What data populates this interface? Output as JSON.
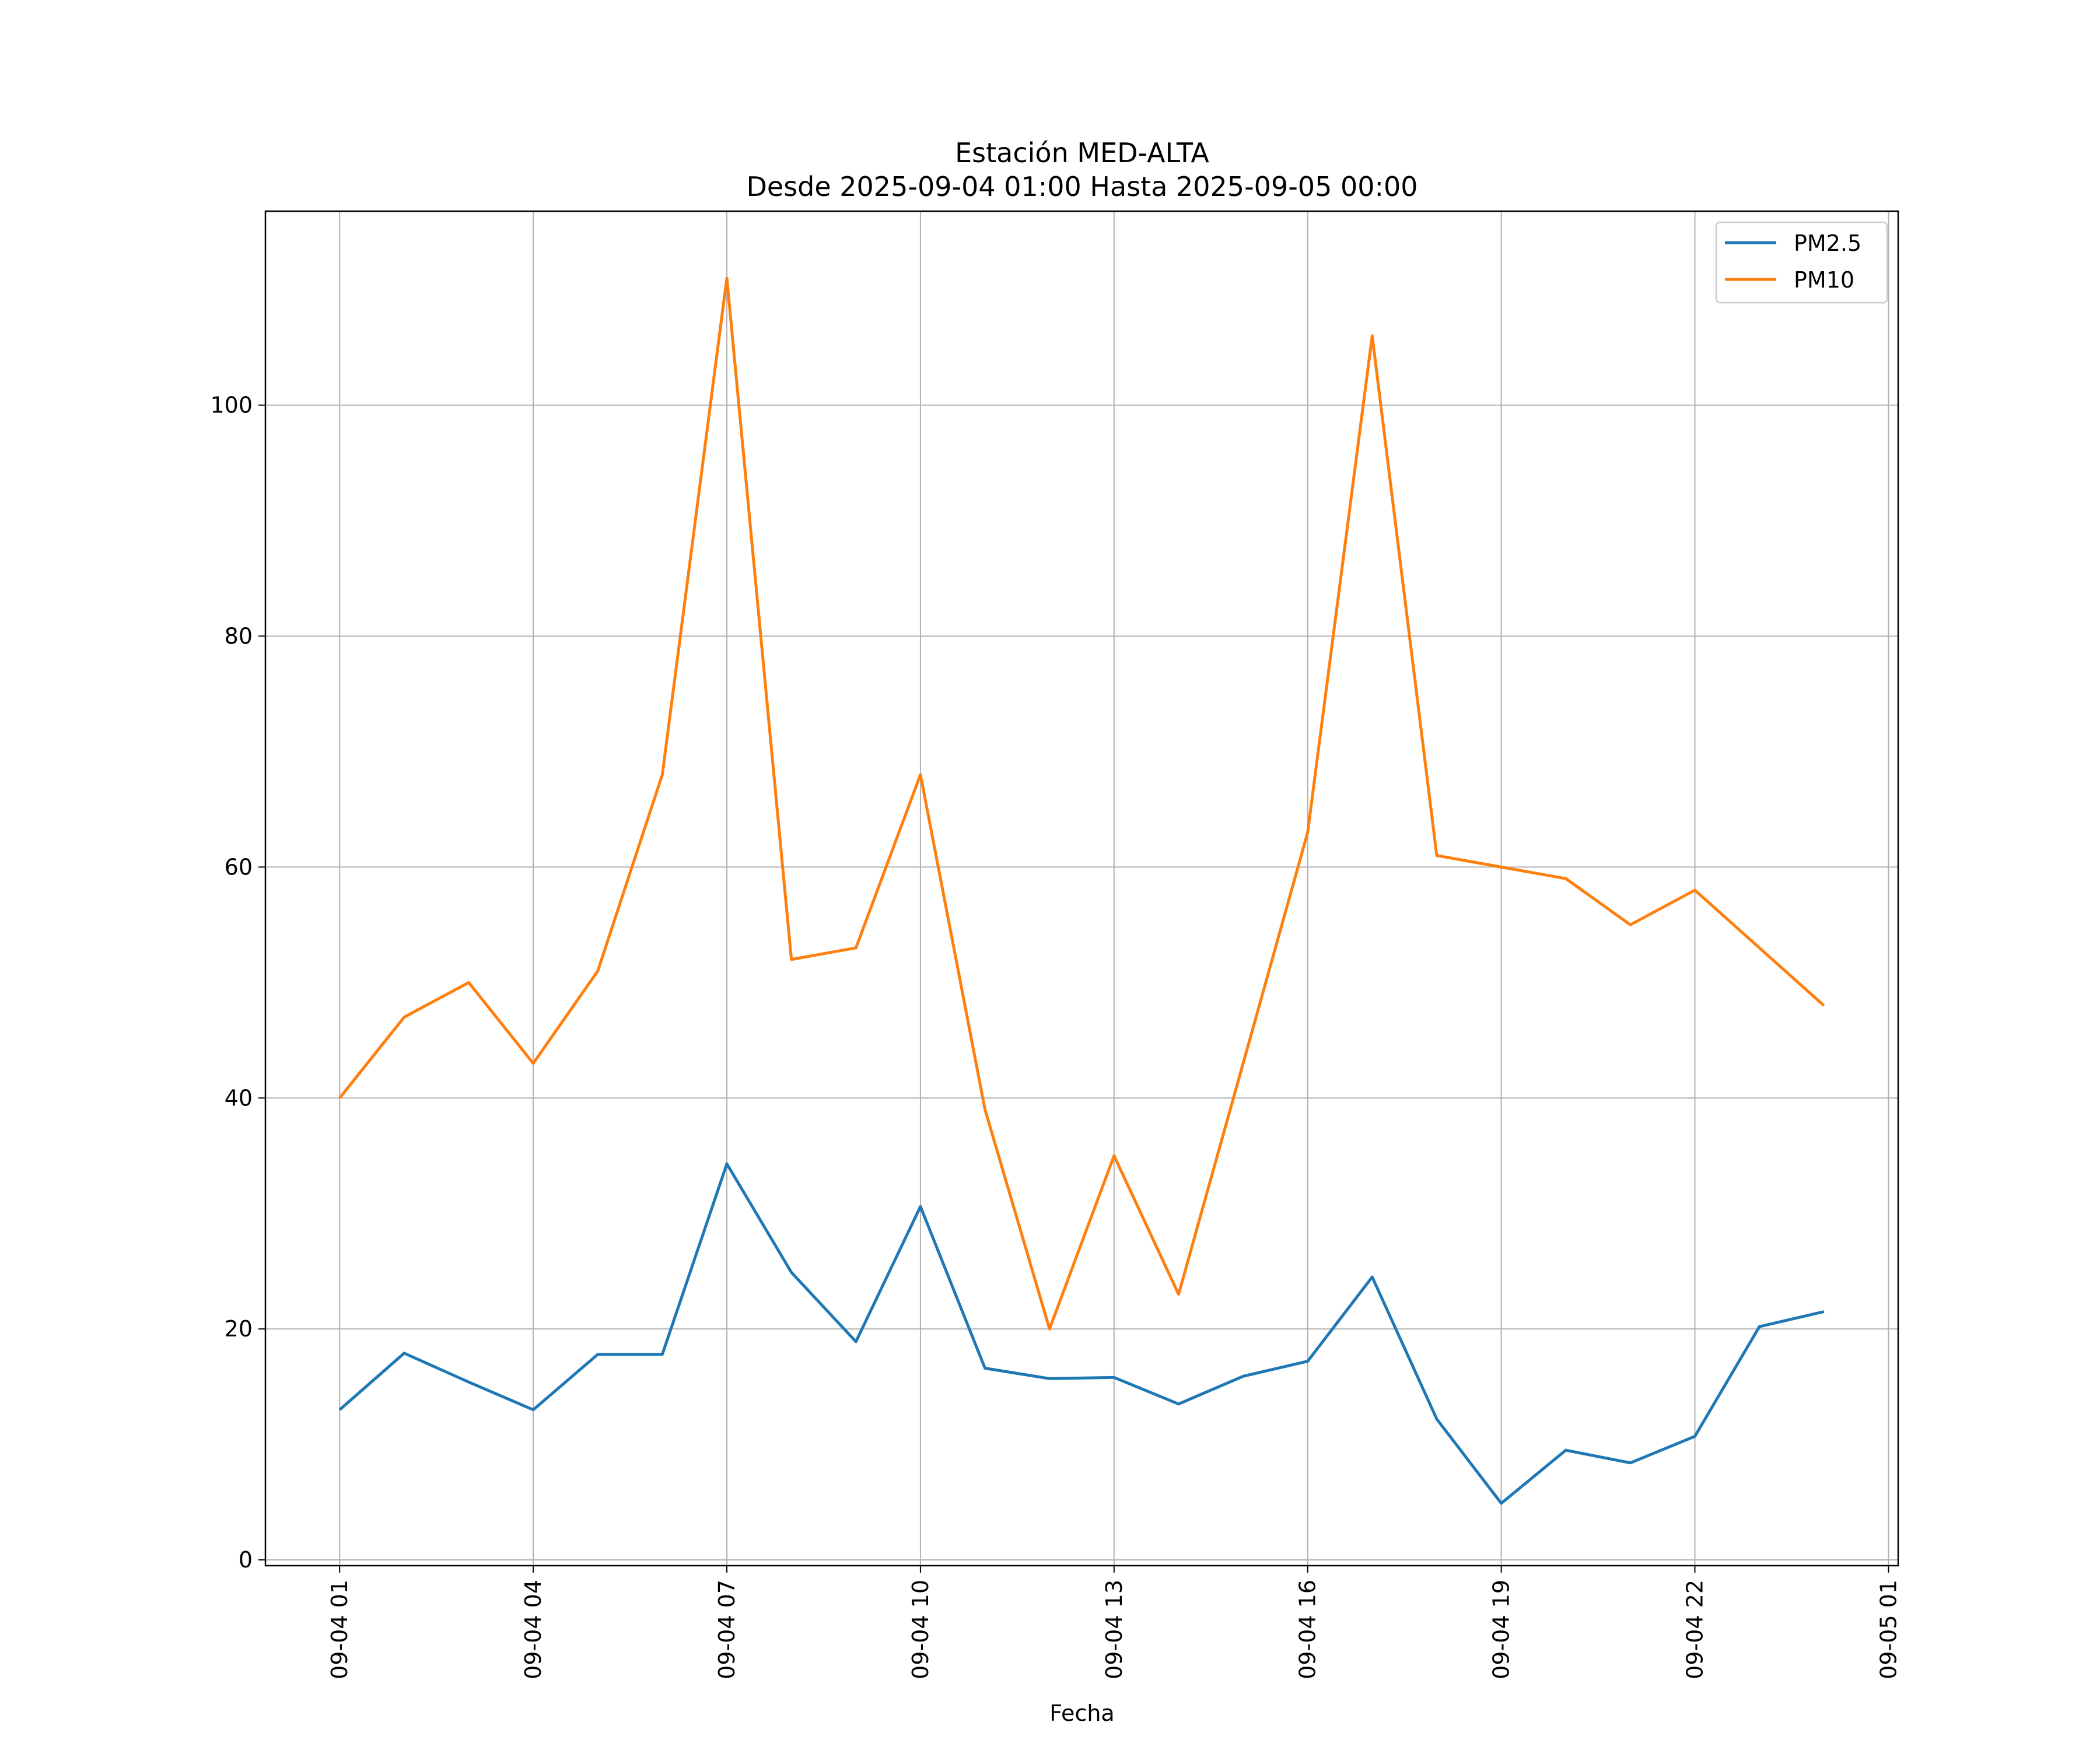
{
  "chart_data": {
    "type": "line",
    "title": "Estación MED-ALTA",
    "subtitle": "Desde 2025-09-04 01:00 Hasta 2025-09-05 00:00",
    "xlabel": "Fecha",
    "ylabel": "",
    "x": [
      "09-04 01",
      "09-04 02",
      "09-04 03",
      "09-04 04",
      "09-04 05",
      "09-04 06",
      "09-04 07",
      "09-04 08",
      "09-04 09",
      "09-04 10",
      "09-04 11",
      "09-04 12",
      "09-04 13",
      "09-04 14",
      "09-04 15",
      "09-04 16",
      "09-04 17",
      "09-04 18",
      "09-04 19",
      "09-04 20",
      "09-04 21",
      "09-04 22",
      "09-04 23",
      "09-05 00"
    ],
    "xlim_hours": [
      -1.15,
      24.15
    ],
    "x_ticks": [
      {
        "h": 0,
        "label": "09-04 01"
      },
      {
        "h": 3,
        "label": "09-04 04"
      },
      {
        "h": 6,
        "label": "09-04 07"
      },
      {
        "h": 9,
        "label": "09-04 10"
      },
      {
        "h": 12,
        "label": "09-04 13"
      },
      {
        "h": 15,
        "label": "09-04 16"
      },
      {
        "h": 18,
        "label": "09-04 19"
      },
      {
        "h": 21,
        "label": "09-04 22"
      },
      {
        "h": 24,
        "label": "09-05 01"
      }
    ],
    "y_ticks": [
      0,
      20,
      40,
      60,
      80,
      100
    ],
    "ylim": [
      -0.5,
      116.8
    ],
    "grid": true,
    "legend": "top-right",
    "series": [
      {
        "name": "PM2.5",
        "color": "#1f77b4",
        "values": [
          13.0,
          17.9,
          15.4,
          13.0,
          17.8,
          17.8,
          34.3,
          24.9,
          18.9,
          30.6,
          16.6,
          15.7,
          15.8,
          13.5,
          15.9,
          17.2,
          24.5,
          12.2,
          4.9,
          9.5,
          8.4,
          10.7,
          20.2,
          21.5
        ]
      },
      {
        "name": "PM10",
        "color": "#ff7f0e",
        "values": [
          40,
          47,
          50,
          43,
          51,
          68,
          111,
          52,
          53,
          68,
          39,
          20,
          35,
          23,
          43,
          63,
          106,
          61,
          60,
          59,
          55,
          58,
          53,
          48
        ]
      }
    ]
  }
}
